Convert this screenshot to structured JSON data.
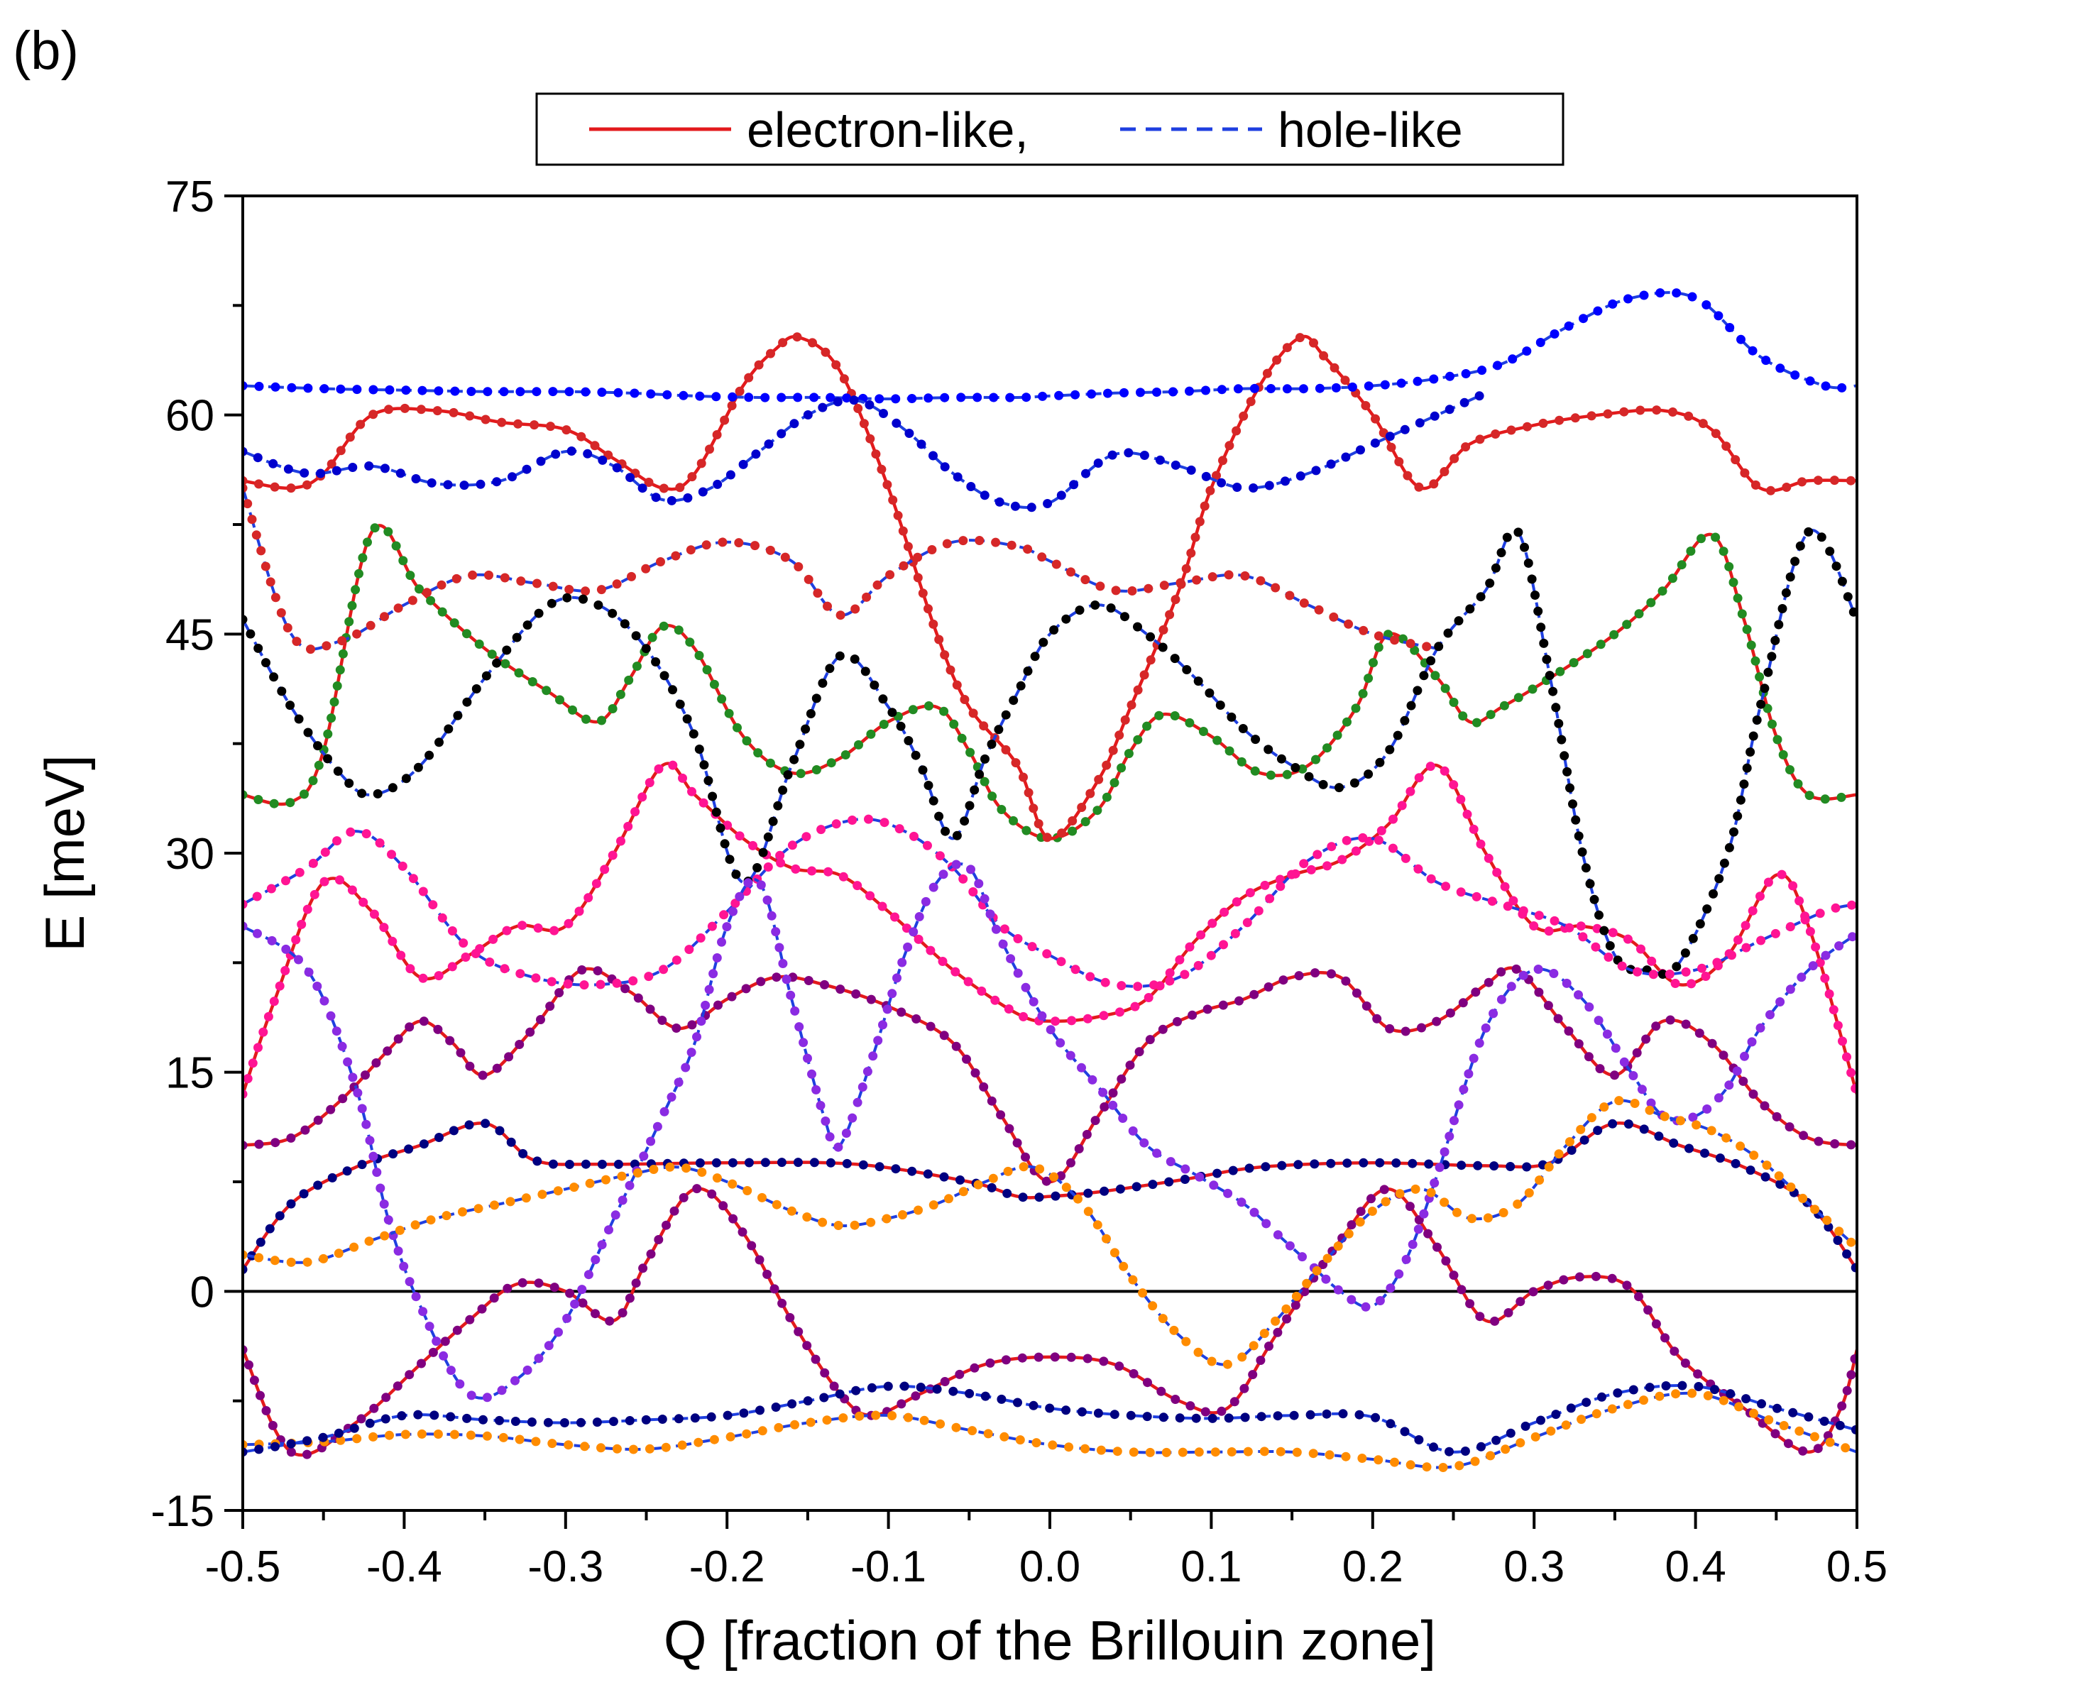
{
  "panel_label": "(b)",
  "chart_data": {
    "type": "line",
    "title": "",
    "xlabel": "Q [fraction of the Brillouin zone]",
    "ylabel": "E [meV]",
    "xlim": [
      -0.5,
      0.5
    ],
    "ylim": [
      -15,
      75
    ],
    "x_ticks": [
      -0.5,
      -0.4,
      -0.3,
      -0.2,
      -0.1,
      0.0,
      0.1,
      0.2,
      0.3,
      0.4,
      0.5
    ],
    "x_tick_labels": [
      "-0.5",
      "-0.4",
      "-0.3",
      "-0.2",
      "-0.1",
      "0.0",
      "0.1",
      "0.2",
      "0.3",
      "0.4",
      "0.5"
    ],
    "y_ticks": [
      -15,
      0,
      15,
      30,
      45,
      60,
      75
    ],
    "y_tick_labels": [
      "-15",
      "0",
      "15",
      "30",
      "45",
      "60",
      "75"
    ],
    "grid": false,
    "zero_line": 0,
    "legend": {
      "position": "top-center",
      "entries": [
        {
          "label": "electron-like,",
          "style": "solid",
          "color": "#e31a1c"
        },
        {
          "label": "hole-like",
          "style": "dashed",
          "color": "#1f3fe0"
        }
      ]
    },
    "series": [
      {
        "name": "electron-like",
        "style": "solid",
        "color": "#e31a1c",
        "marker_color": "#228b22",
        "x": [
          -0.5,
          -0.47,
          -0.45,
          -0.42,
          -0.39,
          -0.35,
          -0.31,
          -0.28,
          -0.26,
          -0.24,
          -0.22,
          -0.19,
          -0.16,
          -0.13,
          -0.1,
          -0.07,
          -0.05,
          -0.03,
          0.0,
          0.03,
          0.05,
          0.07,
          0.1,
          0.13,
          0.16,
          0.19,
          0.21,
          0.24,
          0.26,
          0.28,
          0.31,
          0.35,
          0.38,
          0.41,
          0.43,
          0.45,
          0.47,
          0.5
        ],
        "y": [
          34,
          33.5,
          37,
          52,
          48,
          44,
          41,
          39,
          42,
          45.5,
          44,
          38,
          35.5,
          36.5,
          39,
          40,
          37,
          33,
          31,
          33,
          37,
          39.5,
          38,
          35.5,
          36,
          40,
          45,
          42,
          39,
          40,
          42,
          45,
          48,
          51.8,
          46,
          38,
          34,
          34
        ]
      },
      {
        "name": "electron-like",
        "style": "solid",
        "color": "#e31a1c",
        "marker_color": "#d62728",
        "x": [
          -0.5,
          -0.47,
          -0.45,
          -0.42,
          -0.38,
          -0.34,
          -0.3,
          -0.27,
          -0.24,
          -0.22,
          -0.19,
          -0.17,
          -0.155,
          -0.13,
          -0.1,
          -0.07,
          -0.05,
          -0.02,
          0.0,
          0.03,
          0.05,
          0.08,
          0.1,
          0.13,
          0.155,
          0.17,
          0.2,
          0.23,
          0.26,
          0.3,
          0.34,
          0.38,
          0.41,
          0.44,
          0.47,
          0.5
        ],
        "y": [
          55.5,
          55,
          56,
          60,
          60.3,
          59.5,
          59,
          57,
          55,
          56,
          62,
          64.5,
          65.3,
          63,
          55,
          45,
          40,
          36,
          31,
          35,
          40,
          48,
          55,
          62,
          65.3,
          64,
          60,
          55,
          58,
          59.3,
          60,
          60.3,
          59,
          55,
          55.5,
          55.5
        ]
      },
      {
        "name": "electron-like",
        "style": "solid",
        "color": "#e31a1c",
        "marker_color": "#ff1493",
        "x": [
          -0.5,
          -0.48,
          -0.45,
          -0.42,
          -0.39,
          -0.36,
          -0.33,
          -0.3,
          -0.27,
          -0.24,
          -0.22,
          -0.19,
          -0.16,
          -0.13,
          -0.1,
          -0.06,
          -0.02,
          0.0,
          0.03,
          0.06,
          0.09,
          0.12,
          0.15,
          0.18,
          0.21,
          0.24,
          0.27,
          0.3,
          0.33,
          0.36,
          0.39,
          0.42,
          0.45,
          0.47,
          0.5
        ],
        "y": [
          13.5,
          20,
          28,
          26,
          21.5,
          23,
          25,
          25,
          30,
          36,
          34,
          31,
          29,
          28.5,
          26,
          22,
          19,
          18.5,
          18.8,
          20,
          24,
          27,
          28.5,
          29.5,
          32,
          36,
          30,
          25,
          25,
          24,
          21,
          23,
          28.5,
          25,
          13.5
        ]
      },
      {
        "name": "electron-like",
        "style": "solid",
        "color": "#e31a1c",
        "marker_color": "#800080",
        "x": [
          -0.5,
          -0.47,
          -0.44,
          -0.41,
          -0.39,
          -0.37,
          -0.35,
          -0.32,
          -0.29,
          -0.26,
          -0.23,
          -0.2,
          -0.17,
          -0.14,
          -0.1,
          -0.06,
          -0.03,
          0.0,
          0.03,
          0.06,
          0.09,
          0.12,
          0.15,
          0.18,
          0.21,
          0.24,
          0.27,
          0.29,
          0.32,
          0.35,
          0.38,
          0.41,
          0.44,
          0.47,
          0.5
        ],
        "y": [
          10,
          10.5,
          13,
          16.5,
          18.5,
          17,
          14.8,
          18,
          22,
          20.5,
          18,
          20,
          21.5,
          21,
          19.5,
          17,
          12,
          7.5,
          12,
          17,
          19,
          20,
          21.5,
          21.5,
          18,
          18.5,
          21,
          22,
          18,
          14.8,
          18.5,
          17,
          13,
          10.5,
          10
        ]
      },
      {
        "name": "electron-like",
        "style": "solid",
        "color": "#e31a1c",
        "marker_color": "#000080",
        "x": [
          -0.5,
          -0.47,
          -0.43,
          -0.39,
          -0.35,
          -0.32,
          -0.28,
          -0.2,
          -0.12,
          -0.05,
          -0.02,
          0.0,
          0.03,
          0.08,
          0.13,
          0.2,
          0.27,
          0.31,
          0.35,
          0.39,
          0.43,
          0.47,
          0.5
        ],
        "y": [
          1.5,
          6,
          8.5,
          10,
          11.5,
          9,
          8.7,
          8.8,
          8.7,
          7.5,
          6.5,
          6.5,
          6.8,
          7.6,
          8.5,
          8.8,
          8.6,
          8.8,
          11.5,
          10,
          8.5,
          6,
          1.5
        ]
      },
      {
        "name": "electron-like",
        "style": "solid",
        "color": "#e31a1c",
        "marker_color": "#800080",
        "x": [
          -0.5,
          -0.47,
          -0.43,
          -0.39,
          -0.36,
          -0.33,
          -0.3,
          -0.27,
          -0.25,
          -0.22,
          -0.19,
          -0.16,
          -0.13,
          -0.11,
          -0.08,
          -0.04,
          0.0,
          0.04,
          0.08,
          0.11,
          0.14,
          0.18,
          0.21,
          0.24,
          0.27,
          0.3,
          0.33,
          0.36,
          0.39,
          0.43,
          0.47,
          0.49,
          0.5
        ],
        "y": [
          -4,
          -11,
          -9,
          -5,
          -2,
          0.5,
          0,
          -2,
          2,
          7,
          4,
          -2,
          -7,
          -8.5,
          -7,
          -5,
          -4.5,
          -5,
          -7.5,
          -8,
          -3,
          3.5,
          7,
          3,
          -2,
          0,
          1,
          0.2,
          -4.5,
          -8,
          -11,
          -8,
          -4
        ]
      },
      {
        "name": "hole-like",
        "style": "dashed",
        "color": "#1f3fe0",
        "marker_color": "#0000ff",
        "x": [
          -0.5,
          -0.45,
          -0.4,
          -0.35,
          -0.3,
          -0.26,
          -0.22,
          -0.18,
          -0.14,
          -0.1,
          -0.06,
          -0.02,
          0.0,
          0.04,
          0.08,
          0.12,
          0.16,
          0.2,
          0.24,
          0.28,
          0.32,
          0.36,
          0.4,
          0.44,
          0.48,
          0.5
        ],
        "y": [
          62,
          61.8,
          61.7,
          61.6,
          61.6,
          61.5,
          61.3,
          61.2,
          61.2,
          61.1,
          61.2,
          61.2,
          61.3,
          61.5,
          61.6,
          61.8,
          61.8,
          62,
          62.5,
          63.5,
          66,
          68,
          68,
          64,
          62,
          62
        ]
      },
      {
        "name": "hole-like",
        "style": "dashed",
        "color": "#1f3fe0",
        "marker_color": "#0000cd",
        "x": [
          -0.5,
          -0.46,
          -0.42,
          -0.38,
          -0.34,
          -0.3,
          -0.27,
          -0.24,
          -0.21,
          -0.18,
          -0.15,
          -0.12,
          -0.09,
          -0.06,
          -0.03,
          0.0,
          0.04,
          0.08,
          0.12,
          0.16,
          0.2,
          0.24,
          0.27
        ],
        "y": [
          57.5,
          56,
          56.5,
          55.3,
          55.5,
          57.5,
          56.5,
          54.2,
          55,
          57.5,
          60,
          61,
          59,
          56,
          54,
          54,
          57.3,
          56.5,
          55,
          56,
          58,
          60,
          61.5
        ]
      },
      {
        "name": "hole-like",
        "style": "dashed",
        "color": "#1f3fe0",
        "marker_color": "#d62728",
        "x": [
          -0.5,
          -0.47,
          -0.44,
          -0.4,
          -0.36,
          -0.32,
          -0.28,
          -0.24,
          -0.2,
          -0.16,
          -0.13,
          -0.1,
          -0.06,
          -0.02,
          0.0,
          0.04,
          0.08,
          0.12,
          0.16,
          0.2,
          0.24
        ],
        "y": [
          55,
          45,
          44.5,
          47,
          49,
          48.5,
          48,
          50,
          51.3,
          50,
          46.3,
          49,
          51.3,
          51,
          50,
          48,
          48.5,
          49,
          47,
          45,
          44
        ]
      },
      {
        "name": "hole-like",
        "style": "dashed",
        "color": "#1f3fe0",
        "marker_color": "#000000",
        "x": [
          -0.5,
          -0.47,
          -0.44,
          -0.42,
          -0.39,
          -0.35,
          -0.31,
          -0.28,
          -0.25,
          -0.22,
          -0.19,
          -0.16,
          -0.13,
          -0.1,
          -0.08,
          -0.06,
          -0.04,
          -0.02,
          0.0,
          0.03,
          0.06,
          0.09,
          0.12,
          0.15,
          0.18,
          0.21,
          0.24,
          0.27,
          0.29,
          0.31,
          0.33,
          0.35,
          0.37,
          0.39,
          0.42,
          0.44,
          0.47,
          0.5
        ],
        "y": [
          46,
          40,
          35.5,
          34,
          36,
          42,
          47,
          47,
          44,
          38,
          28,
          36,
          43.5,
          40,
          36,
          31,
          36.5,
          41,
          45,
          47,
          45,
          42,
          38.5,
          36,
          34.5,
          37,
          44,
          48,
          52,
          42,
          30,
          23,
          22,
          22.5,
          30,
          40,
          52,
          46
        ]
      },
      {
        "name": "hole-like",
        "style": "dashed",
        "color": "#1f3fe0",
        "marker_color": "#ff1493",
        "x": [
          -0.5,
          -0.46,
          -0.43,
          -0.4,
          -0.36,
          -0.32,
          -0.28,
          -0.24,
          -0.2,
          -0.16,
          -0.12,
          -0.09,
          -0.06,
          -0.03,
          0.0,
          0.04,
          0.08,
          0.12,
          0.16,
          0.2,
          0.24,
          0.28,
          0.32,
          0.36,
          0.4,
          0.44,
          0.48,
          0.5
        ],
        "y": [
          26.5,
          29,
          31.5,
          29,
          23.5,
          21.5,
          21,
          22,
          26,
          30.5,
          32.3,
          31.5,
          29,
          25,
          23,
          21,
          21.5,
          25,
          29.5,
          31,
          28,
          26.5,
          25,
          22,
          22,
          24,
          26,
          26.5
        ]
      },
      {
        "name": "hole-like",
        "style": "dashed",
        "color": "#1f3fe0",
        "marker_color": "#8a2be2",
        "x": [
          -0.5,
          -0.46,
          -0.43,
          -0.41,
          -0.39,
          -0.36,
          -0.33,
          -0.3,
          -0.27,
          -0.24,
          -0.22,
          -0.2,
          -0.18,
          -0.16,
          -0.14,
          -0.13,
          -0.11,
          -0.09,
          -0.07,
          -0.05,
          -0.03,
          0.0,
          0.03,
          0.06,
          0.09,
          0.12,
          0.14,
          0.16,
          0.18,
          0.2,
          0.22,
          0.24,
          0.27,
          0.3,
          0.33,
          0.36,
          0.38,
          0.4,
          0.42,
          0.44,
          0.47,
          0.5
        ],
        "y": [
          25,
          22,
          14,
          5,
          -1,
          -7,
          -6,
          -2,
          5,
          12,
          17,
          25,
          28,
          20,
          12,
          10,
          16,
          23,
          28,
          29,
          24,
          18,
          14,
          10,
          8,
          6,
          4,
          2,
          0,
          -1,
          2,
          8,
          18,
          22,
          20,
          15,
          12,
          12,
          14,
          18,
          22,
          24.5
        ]
      },
      {
        "name": "hole-like",
        "style": "dashed",
        "color": "#1f3fe0",
        "marker_color": "#ff8c00",
        "x": [
          -0.5,
          -0.46,
          -0.42,
          -0.38,
          -0.34,
          -0.3,
          -0.26,
          -0.23,
          -0.2,
          -0.16,
          -0.13,
          -0.1,
          -0.07,
          -0.04,
          -0.01,
          0.02,
          0.05,
          0.08,
          0.11,
          0.14,
          0.17,
          0.2,
          0.23,
          0.26,
          0.29,
          0.32,
          0.35,
          0.38,
          0.41,
          0.44,
          0.47,
          0.5
        ],
        "y": [
          2.5,
          2,
          3.5,
          5,
          6,
          7,
          8,
          8.5,
          7.5,
          5.5,
          4.5,
          5,
          6,
          7.5,
          8.5,
          6,
          1,
          -3,
          -5,
          -2,
          2,
          5.5,
          7,
          5,
          6,
          10,
          13,
          12,
          11,
          9,
          6,
          3
        ]
      },
      {
        "name": "hole-like",
        "style": "dashed",
        "color": "#1f3fe0",
        "marker_color": "#ff8c00",
        "x": [
          -0.5,
          -0.45,
          -0.4,
          -0.35,
          -0.3,
          -0.25,
          -0.2,
          -0.15,
          -0.1,
          -0.05,
          0.0,
          0.05,
          0.1,
          0.15,
          0.2,
          0.25,
          0.3,
          0.35,
          0.4,
          0.45,
          0.5
        ],
        "y": [
          -10.5,
          -10.3,
          -9.8,
          -9.9,
          -10.5,
          -10.8,
          -10,
          -9,
          -8.5,
          -9.5,
          -10.5,
          -11,
          -11,
          -11,
          -11.5,
          -12,
          -10,
          -8,
          -7,
          -9,
          -11
        ]
      },
      {
        "name": "hole-like",
        "style": "dashed",
        "color": "#1f3fe0",
        "marker_color": "#000080",
        "x": [
          -0.5,
          -0.45,
          -0.4,
          -0.35,
          -0.3,
          -0.25,
          -0.2,
          -0.15,
          -0.1,
          -0.05,
          0.0,
          0.05,
          0.1,
          0.15,
          0.2,
          0.25,
          0.3,
          0.35,
          0.4,
          0.45,
          0.5
        ],
        "y": [
          -11,
          -10,
          -8.5,
          -8.8,
          -9,
          -8.8,
          -8.5,
          -7.5,
          -6.5,
          -7,
          -8,
          -8.5,
          -8.7,
          -8.5,
          -8.6,
          -11,
          -9,
          -7,
          -6.5,
          -8,
          -9.5
        ]
      }
    ]
  }
}
